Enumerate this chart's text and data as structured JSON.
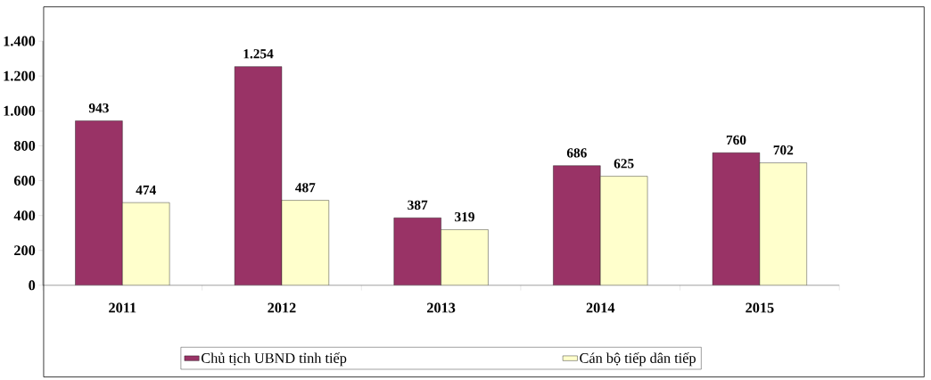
{
  "chart_data": {
    "type": "bar",
    "categories": [
      "2011",
      "2012",
      "2013",
      "2014",
      "2015"
    ],
    "series": [
      {
        "name": "Chủ tịch UBND tỉnh tiếp",
        "color": "#993366",
        "values": [
          943,
          1254,
          387,
          686,
          760
        ],
        "value_labels": [
          "943",
          "1.254",
          "387",
          "686",
          "760"
        ]
      },
      {
        "name": "Cán bộ tiếp dân tiếp",
        "color": "#ffffcc",
        "values": [
          474,
          487,
          319,
          625,
          702
        ],
        "value_labels": [
          "474",
          "487",
          "319",
          "625",
          "702"
        ]
      }
    ],
    "ylim": [
      0,
      1400
    ],
    "yticks": [
      0,
      200,
      400,
      600,
      800,
      {
        "value": 1000,
        "label": "1.000"
      },
      {
        "value": 1200,
        "label": "1.200"
      },
      {
        "value": 1400,
        "label": "1.400"
      }
    ],
    "grid": false,
    "legend": "bottom"
  }
}
